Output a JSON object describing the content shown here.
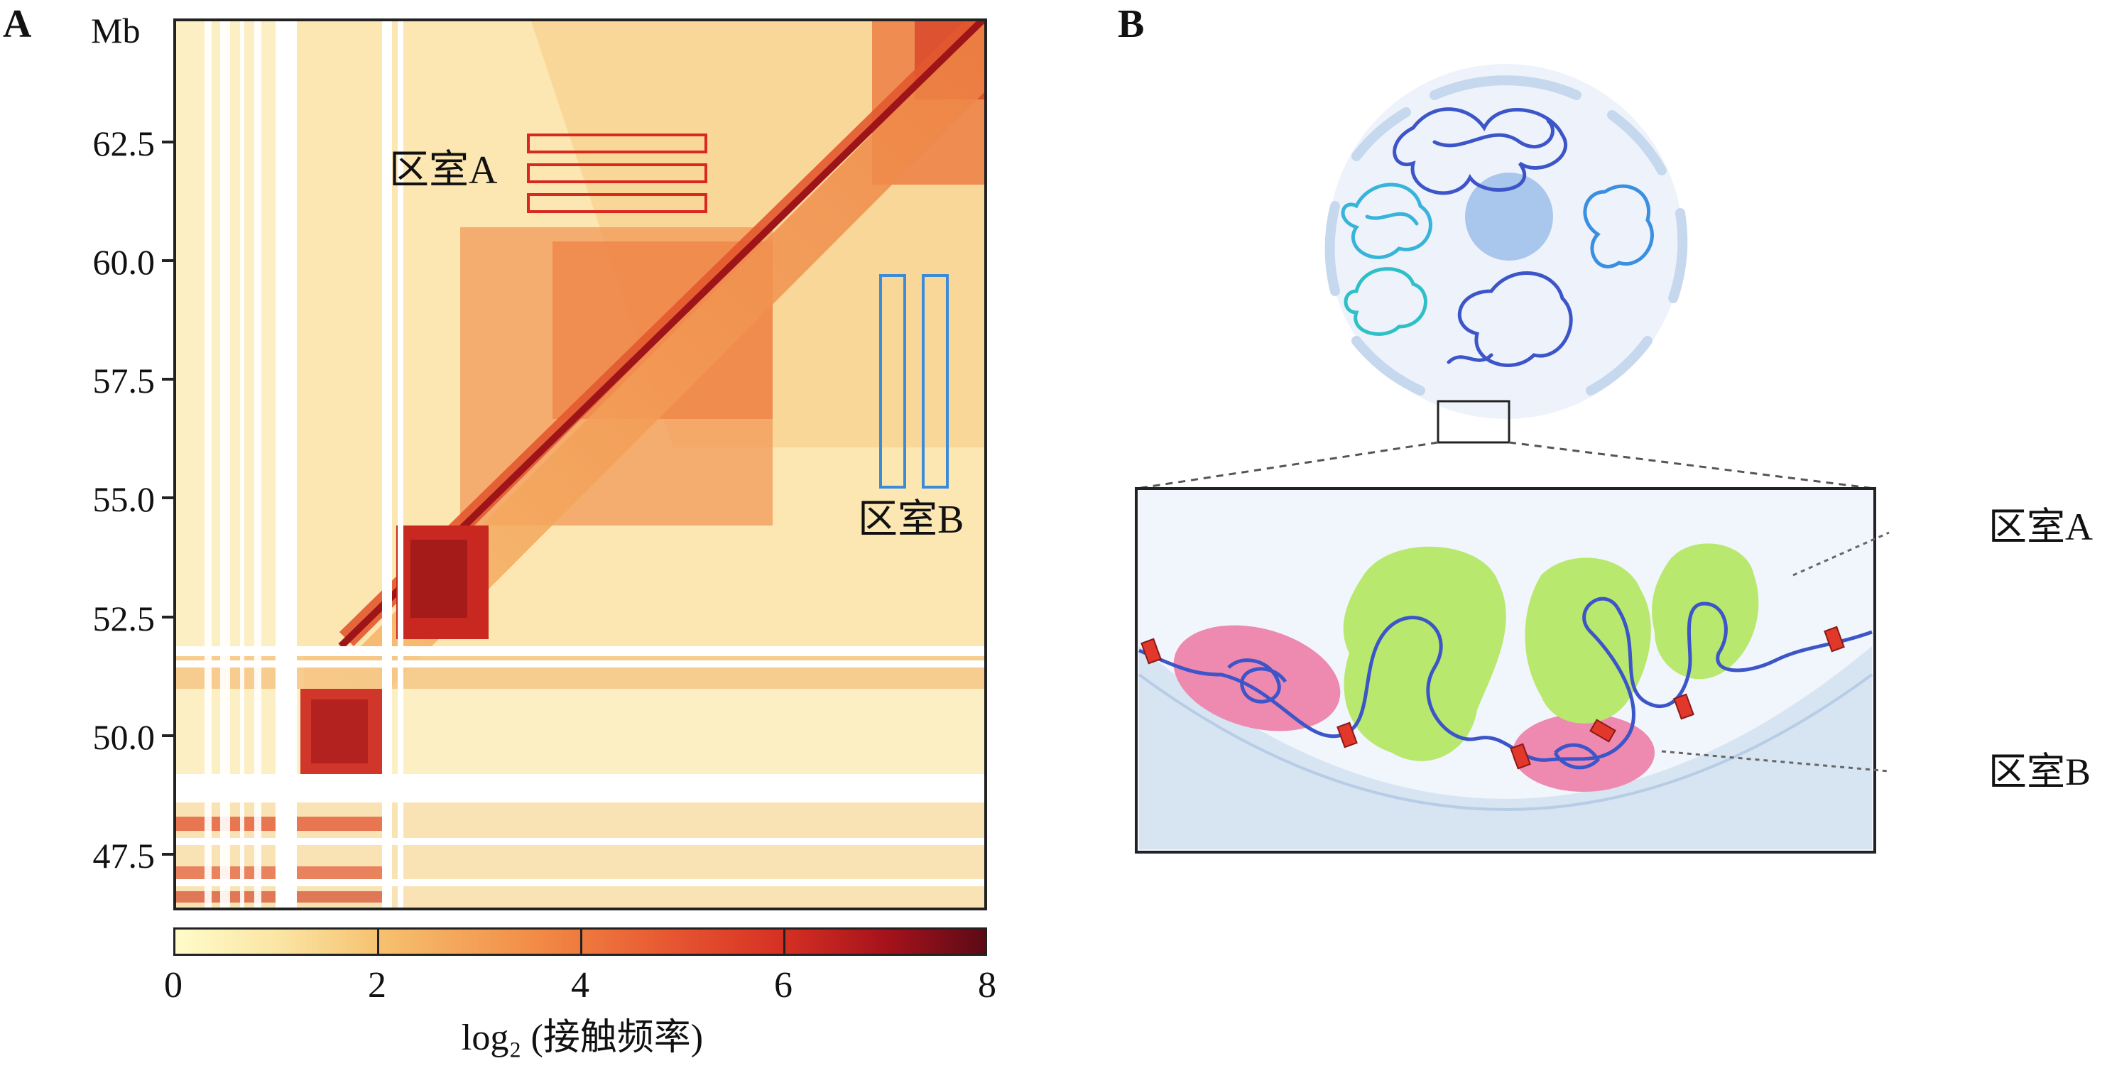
{
  "panelA": {
    "letter": "A",
    "y_unit": "Mb",
    "y_ticks": [
      "62.5",
      "60.0",
      "57.5",
      "55.0",
      "52.5",
      "50.0",
      "47.5"
    ],
    "compartment_a_label": "区室A",
    "compartment_b_label": "区室B",
    "colorbar": {
      "ticks": [
        "0",
        "2",
        "4",
        "6",
        "8"
      ],
      "title": "log₂ (接触频率)"
    }
  },
  "panelB": {
    "letter": "B",
    "compartment_a_label": "区室A",
    "compartment_b_label": "区室B"
  },
  "chart_data": {
    "type": "heatmap",
    "title": "",
    "ylabel": "Mb",
    "y_ticks": [
      62.5,
      60.0,
      57.5,
      55.0,
      52.5,
      50.0,
      47.5
    ],
    "ylim": [
      46.7,
      64.9
    ],
    "colorbar_range": [
      0,
      8
    ],
    "colorbar_ticks": [
      0,
      2,
      4,
      6,
      8
    ],
    "colorbar_label": "log₂ (接触频率)",
    "annotations": [
      "区室A",
      "区室B"
    ]
  }
}
